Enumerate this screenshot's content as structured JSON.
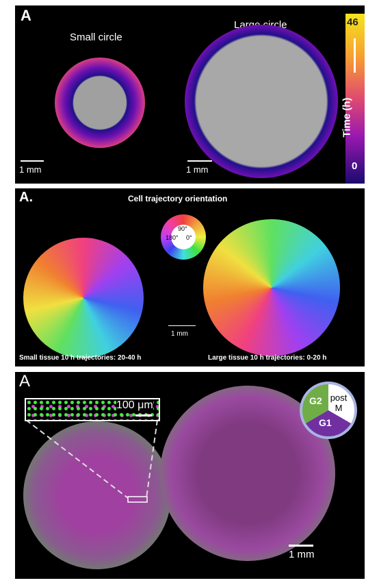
{
  "panel_time": {
    "label": "A",
    "small_title": "Small circle",
    "large_title": "Large circle",
    "colorbar": {
      "max": 46,
      "label": "Time (h)",
      "min": 0
    },
    "scale_small": "1 mm",
    "scale_large": "1 mm"
  },
  "panel_orientation": {
    "label": "A.",
    "title": "Cell trajectory orientation",
    "wheel": {
      "top": "90°",
      "left": "180°",
      "right": "0°"
    },
    "scale": "1 mm",
    "caption_small": "Small tissue 10 h trajectories: 20-40 h",
    "caption_large": "Large tissue 10 h trajectories: 0-20 h"
  },
  "panel_cycle": {
    "label": "A",
    "inset_scale": "100 μm",
    "cycle": {
      "g2": "G2",
      "post_m": "post M",
      "g1": "G1"
    },
    "scale": "1 mm"
  }
}
